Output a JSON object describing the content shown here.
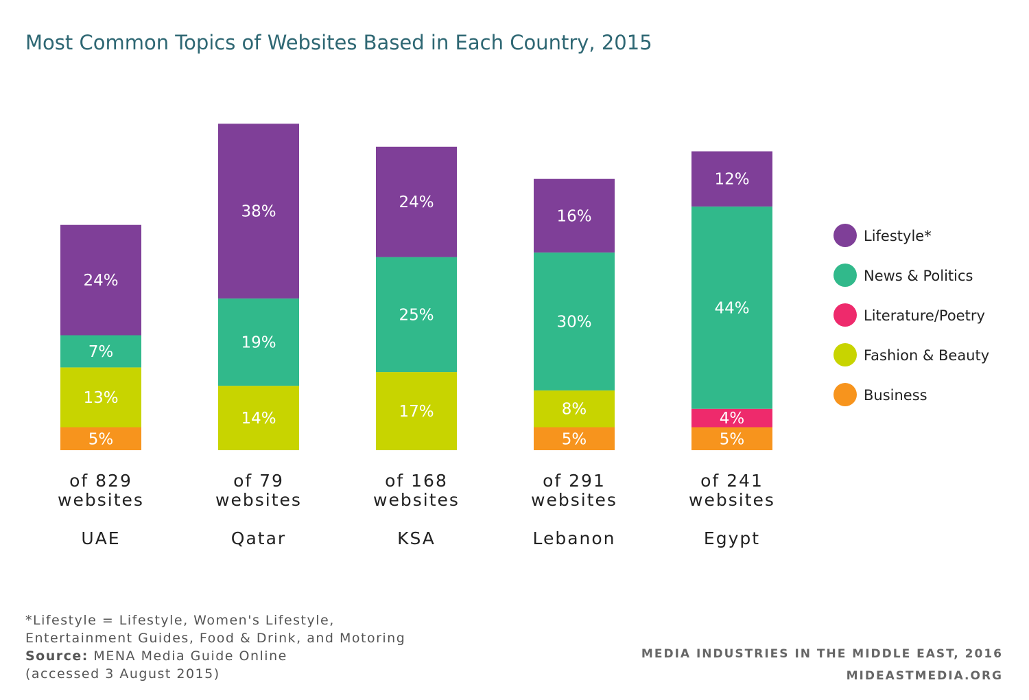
{
  "chart_data": {
    "type": "bar",
    "stacked": true,
    "title": "Most Common Topics of Websites Based in Each Country, 2015",
    "categories": [
      "UAE",
      "Qatar",
      "KSA",
      "Lebanon",
      "Egypt"
    ],
    "category_totals": [
      "of 829\nwebsites",
      "of 79\nwebsites",
      "of 168\nwebsites",
      "of 291\nwebsites",
      "of 241\nwebsites"
    ],
    "series": [
      {
        "name": "Business",
        "color": "#f7941d",
        "values": [
          5,
          0,
          0,
          5,
          5
        ],
        "labels": [
          "5%",
          "",
          "",
          "5%",
          "5%"
        ]
      },
      {
        "name": "Fashion & Beauty",
        "color": "#c8d400",
        "values": [
          13,
          14,
          17,
          8,
          0
        ],
        "labels": [
          "13%",
          "14%",
          "17%",
          "8%",
          ""
        ]
      },
      {
        "name": "Literature/Poetry",
        "color": "#ee2a6c",
        "values": [
          0,
          0,
          0,
          0,
          4
        ],
        "labels": [
          "",
          "",
          "",
          "",
          "4%"
        ]
      },
      {
        "name": "News & Politics",
        "color": "#31b98b",
        "values": [
          7,
          19,
          25,
          30,
          44
        ],
        "labels": [
          "7%",
          "19%",
          "25%",
          "30%",
          "44%"
        ]
      },
      {
        "name": "Lifestyle*",
        "color": "#7f3f98",
        "values": [
          24,
          38,
          24,
          16,
          12
        ],
        "labels": [
          "24%",
          "38%",
          "24%",
          "16%",
          "12%"
        ]
      }
    ],
    "legend_order": [
      "Lifestyle*",
      "News & Politics",
      "Literature/Poetry",
      "Fashion & Beauty",
      "Business"
    ],
    "legend_position": "right",
    "ylim": [
      0,
      100
    ],
    "grid": false
  },
  "title_color": "#2e6773",
  "footnote": {
    "lines": [
      "*Lifestyle = Lifestyle, Women's Lifestyle,",
      "Entertainment Guides, Food & Drink, and Motoring"
    ],
    "source_label": "Source:",
    "source_text": " MENA Media Guide Online",
    "accessed": "(accessed 3 August 2015)"
  },
  "credits": [
    "MEDIA INDUSTRIES IN THE MIDDLE EAST, 2016",
    "MIDEASTMEDIA.ORG"
  ]
}
